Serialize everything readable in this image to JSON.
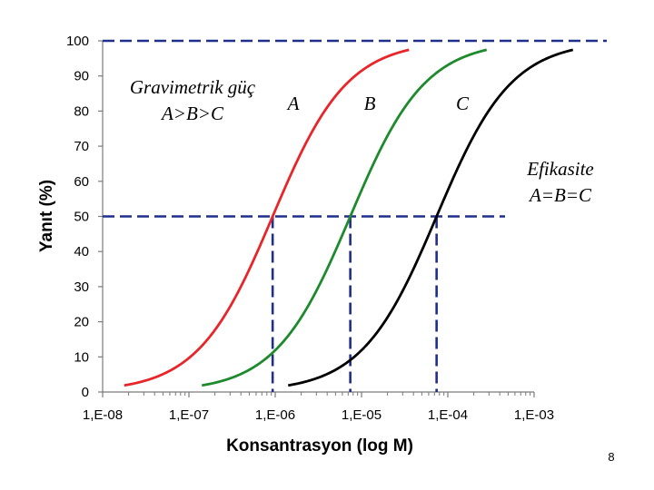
{
  "chart_data": {
    "type": "line",
    "xlabel": "Konsantrasyon (log M)",
    "ylabel": "Yanıt (%)",
    "x_scale": "log",
    "xlim_log10": [
      -8,
      -3
    ],
    "ylim": [
      0,
      100
    ],
    "yticks": [
      0,
      10,
      20,
      30,
      40,
      50,
      60,
      70,
      80,
      90,
      100
    ],
    "xtick_labels": [
      {
        "value": -8,
        "label": "1,E-08"
      },
      {
        "value": -7,
        "label": "1,E-07"
      },
      {
        "value": -6,
        "label": "1,E-06"
      },
      {
        "value": -5,
        "label": "1,E-05"
      },
      {
        "value": -4,
        "label": "1,E-04"
      },
      {
        "value": -3,
        "label": "1,E-03"
      }
    ],
    "series": [
      {
        "name": "A",
        "color": "#e8262a",
        "ec50_log": -6.03,
        "hill": 1.0,
        "x_start_log": -7.75,
        "x_end_log": -4.45
      },
      {
        "name": "B",
        "color": "#1d8a2c",
        "ec50_log": -5.13,
        "hill": 1.0,
        "x_start_log": -6.85,
        "x_end_log": -3.55
      },
      {
        "name": "C",
        "color": "#000000",
        "ec50_log": -4.13,
        "hill": 1.0,
        "x_start_log": -5.85,
        "x_end_log": -2.55
      }
    ],
    "reference_lines": {
      "color": "#1f2f8a",
      "max_response": 100,
      "half_response": 50
    },
    "annotations": {
      "potency_line1": "Gravimetrik güç",
      "potency_line2": "A>B>C",
      "efficacy_line1": "Efikasite",
      "efficacy_line2": "A=B=C"
    }
  },
  "page_number": "8"
}
